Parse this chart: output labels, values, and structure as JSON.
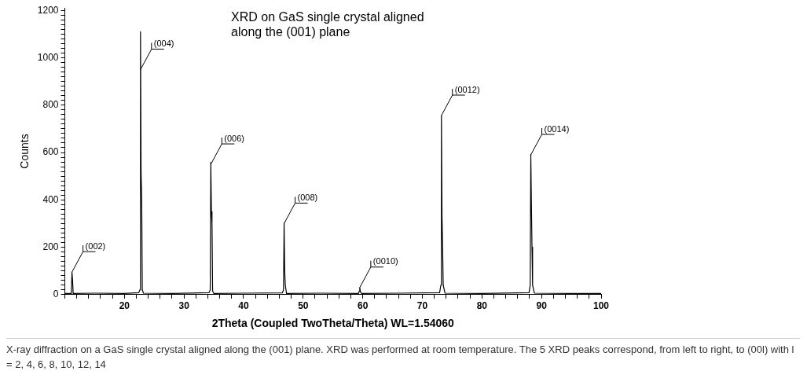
{
  "chart_data": {
    "type": "line",
    "title": "XRD on GaS single crystal aligned along the (001) plane",
    "xlabel": "2Theta (Coupled TwoTheta/Theta) WL=1.54060",
    "ylabel": "Counts",
    "series": [
      {
        "color": "#000000",
        "x": [
          10,
          11,
          11.1,
          11.2,
          11.3,
          11.4,
          15,
          20,
          22.4,
          22.6,
          22.7,
          22.8,
          22.9,
          23,
          23.2,
          28,
          34.2,
          34.4,
          34.5,
          34.6,
          34.7,
          34.8,
          35,
          40,
          46.5,
          46.7,
          46.8,
          46.9,
          47,
          47.2,
          53,
          59.3,
          59.4,
          59.5,
          59.6,
          59.8,
          66,
          72.9,
          73.1,
          73.2,
          73.3,
          73.4,
          73.5,
          73.8,
          80,
          87.9,
          88.1,
          88.2,
          88.3,
          88.4,
          88.5,
          88.8,
          95,
          100
        ],
        "values": [
          5,
          5,
          10,
          95,
          60,
          5,
          6,
          5,
          8,
          20,
          1110,
          510,
          410,
          20,
          6,
          5,
          8,
          20,
          558,
          350,
          300,
          15,
          5,
          6,
          7,
          20,
          303,
          100,
          40,
          5,
          6,
          5,
          15,
          30,
          12,
          5,
          6,
          8,
          40,
          756,
          330,
          200,
          40,
          6,
          5,
          8,
          40,
          592,
          380,
          200,
          40,
          6,
          5,
          5
        ]
      }
    ],
    "xlim": [
      10,
      100
    ],
    "ylim": [
      0,
      1210
    ],
    "xticks": [
      {
        "value": 10,
        "label": null
      },
      {
        "value": 12,
        "label": null
      },
      {
        "value": 14,
        "label": null
      },
      {
        "value": 16,
        "label": null
      },
      {
        "value": 18,
        "label": null
      },
      20,
      {
        "value": 22,
        "label": null
      },
      {
        "value": 24,
        "label": null
      },
      {
        "value": 26,
        "label": null
      },
      {
        "value": 28,
        "label": null
      },
      30,
      {
        "value": 32,
        "label": null
      },
      {
        "value": 34,
        "label": null
      },
      {
        "value": 36,
        "label": null
      },
      {
        "value": 38,
        "label": null
      },
      40,
      {
        "value": 42,
        "label": null
      },
      {
        "value": 44,
        "label": null
      },
      {
        "value": 46,
        "label": null
      },
      {
        "value": 48,
        "label": null
      },
      50,
      {
        "value": 52,
        "label": null
      },
      {
        "value": 54,
        "label": null
      },
      {
        "value": 56,
        "label": null
      },
      {
        "value": 58,
        "label": null
      },
      60,
      {
        "value": 62,
        "label": null
      },
      {
        "value": 64,
        "label": null
      },
      {
        "value": 66,
        "label": null
      },
      {
        "value": 68,
        "label": null
      },
      70,
      {
        "value": 72,
        "label": null
      },
      {
        "value": 74,
        "label": null
      },
      {
        "value": 76,
        "label": null
      },
      {
        "value": 78,
        "label": null
      },
      80,
      {
        "value": 82,
        "label": null
      },
      {
        "value": 84,
        "label": null
      },
      {
        "value": 86,
        "label": null
      },
      {
        "value": 88,
        "label": null
      },
      90,
      {
        "value": 92,
        "label": null
      },
      {
        "value": 94,
        "label": null
      },
      {
        "value": 96,
        "label": null
      },
      {
        "value": 98,
        "label": null
      },
      100
    ],
    "yticks": [
      0,
      {
        "value": 20,
        "label": null
      },
      {
        "value": 40,
        "label": null
      },
      {
        "value": 60,
        "label": null
      },
      {
        "value": 80,
        "label": null
      },
      {
        "value": 100,
        "label": null
      },
      {
        "value": 120,
        "label": null
      },
      {
        "value": 140,
        "label": null
      },
      {
        "value": 160,
        "label": null
      },
      {
        "value": 180,
        "label": null
      },
      200,
      {
        "value": 220,
        "label": null
      },
      {
        "value": 240,
        "label": null
      },
      {
        "value": 260,
        "label": null
      },
      {
        "value": 280,
        "label": null
      },
      {
        "value": 300,
        "label": null
      },
      {
        "value": 320,
        "label": null
      },
      {
        "value": 340,
        "label": null
      },
      {
        "value": 360,
        "label": null
      },
      {
        "value": 380,
        "label": null
      },
      400,
      {
        "value": 420,
        "label": null
      },
      {
        "value": 440,
        "label": null
      },
      {
        "value": 460,
        "label": null
      },
      {
        "value": 480,
        "label": null
      },
      {
        "value": 500,
        "label": null
      },
      {
        "value": 520,
        "label": null
      },
      {
        "value": 540,
        "label": null
      },
      {
        "value": 560,
        "label": null
      },
      {
        "value": 580,
        "label": null
      },
      600,
      {
        "value": 620,
        "label": null
      },
      {
        "value": 640,
        "label": null
      },
      {
        "value": 660,
        "label": null
      },
      {
        "value": 680,
        "label": null
      },
      {
        "value": 700,
        "label": null
      },
      {
        "value": 720,
        "label": null
      },
      {
        "value": 740,
        "label": null
      },
      {
        "value": 760,
        "label": null
      },
      {
        "value": 780,
        "label": null
      },
      800,
      {
        "value": 820,
        "label": null
      },
      {
        "value": 840,
        "label": null
      },
      {
        "value": 860,
        "label": null
      },
      {
        "value": 880,
        "label": null
      },
      {
        "value": 900,
        "label": null
      },
      {
        "value": 920,
        "label": null
      },
      {
        "value": 940,
        "label": null
      },
      {
        "value": 960,
        "label": null
      },
      {
        "value": 980,
        "label": null
      },
      1000,
      {
        "value": 1020,
        "label": null
      },
      {
        "value": 1040,
        "label": null
      },
      {
        "value": 1060,
        "label": null
      },
      {
        "value": 1080,
        "label": null
      },
      {
        "value": 1100,
        "label": null
      },
      {
        "value": 1120,
        "label": null
      },
      {
        "value": 1140,
        "label": null
      },
      {
        "value": 1160,
        "label": null
      },
      {
        "value": 1180,
        "label": null
      },
      1200
    ],
    "grid": false,
    "legend": false,
    "marker": "none",
    "line_style": "solid",
    "annotations": [
      {
        "text": "(002)",
        "x": 11.2,
        "y": 95
      },
      {
        "text": "(004)",
        "x": 22.7,
        "y": 950
      },
      {
        "text": "(006)",
        "x": 34.5,
        "y": 550
      },
      {
        "text": "(008)",
        "x": 46.8,
        "y": 300
      },
      {
        "text": "(0010)",
        "x": 59.5,
        "y": 30
      },
      {
        "text": "(0012)",
        "x": 73.2,
        "y": 756
      },
      {
        "text": "(0014)",
        "x": 88.2,
        "y": 590
      },
      "X-ray diffraction on a GaS single crystal aligned along the (001) plane. XRD was performed at room temperature. The 5 XRD peaks correspond, from left to right, to (00l) with l = 2, 4, 6, 8, 10, 12, 14"
    ]
  }
}
